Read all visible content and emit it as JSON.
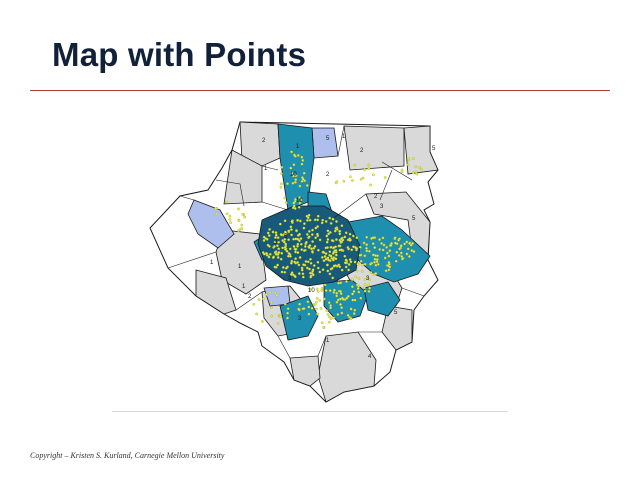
{
  "slide": {
    "title": "Map with Points",
    "copyright": "Copyright – Kristen S. Kurland, Carnegie Mellon University"
  },
  "map": {
    "colors": {
      "white": "#ffffff",
      "light_gray": "#d9d9d9",
      "light_blue": "#aebfee",
      "teal": "#1e8fae",
      "dark_teal": "#175a7a",
      "point": "#e6ec4a",
      "outline": "#1a1a1a"
    },
    "region_labels": [
      "2",
      "1",
      "5",
      "2",
      "5",
      "1",
      "10",
      "2",
      "2",
      "10",
      "3",
      "5",
      "1",
      "3",
      "10",
      "1",
      "2",
      "3",
      "1",
      "4",
      "5",
      "1",
      "5",
      "1",
      "3",
      "3"
    ]
  }
}
